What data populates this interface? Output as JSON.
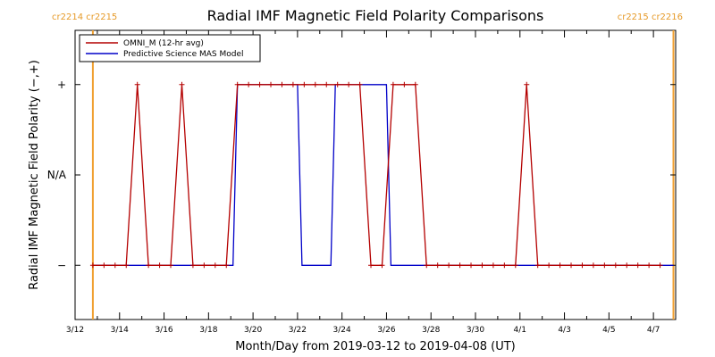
{
  "chart_data": {
    "type": "line",
    "title": "Radial IMF Magnetic Field Polarity Comparisons",
    "xlabel": "Month/Day from 2019-03-12 to 2019-04-08 (UT)",
    "ylabel": "Radial IMF Magnetic Field Polarity (−,+)",
    "x_unit": "days",
    "xlim": [
      0,
      27
    ],
    "ylim": [
      -1.6,
      1.6
    ],
    "x_ticks": [
      {
        "x": 0,
        "label": "3/12"
      },
      {
        "x": 2,
        "label": "3/14"
      },
      {
        "x": 4,
        "label": "3/16"
      },
      {
        "x": 6,
        "label": "3/18"
      },
      {
        "x": 8,
        "label": "3/20"
      },
      {
        "x": 10,
        "label": "3/22"
      },
      {
        "x": 12,
        "label": "3/24"
      },
      {
        "x": 14,
        "label": "3/26"
      },
      {
        "x": 16,
        "label": "3/28"
      },
      {
        "x": 18,
        "label": "3/30"
      },
      {
        "x": 20,
        "label": "4/1"
      },
      {
        "x": 22,
        "label": "4/3"
      },
      {
        "x": 24,
        "label": "4/5"
      },
      {
        "x": 26,
        "label": "4/7"
      }
    ],
    "y_ticks": [
      {
        "y": 1,
        "label": "+"
      },
      {
        "y": 0,
        "label": "N/A"
      },
      {
        "y": -1,
        "label": "−"
      }
    ],
    "rotation_markers": [
      {
        "x": 0.8,
        "label": "cr2214 cr2215",
        "side": "left"
      },
      {
        "x": 26.9,
        "label": "cr2215 cr2216",
        "side": "right"
      }
    ],
    "legend_position": "top-left",
    "series": [
      {
        "name": "OMNI_M (12-hr avg)",
        "color": "#b40000",
        "markers": true,
        "x": [
          0.8,
          1.3,
          1.8,
          2.3,
          2.8,
          3.3,
          3.8,
          4.3,
          4.8,
          5.3,
          5.8,
          6.3,
          6.8,
          7.3,
          7.8,
          8.3,
          8.8,
          9.3,
          9.8,
          10.3,
          10.8,
          11.3,
          11.8,
          12.3,
          12.8,
          13.3,
          13.8,
          14.3,
          14.8,
          15.3,
          15.8,
          16.3,
          16.8,
          17.3,
          17.8,
          18.3,
          18.8,
          19.3,
          19.8,
          20.3,
          20.8,
          21.3,
          21.8,
          22.3,
          22.8,
          23.3,
          23.8,
          24.3,
          24.8,
          25.3,
          25.8,
          26.3
        ],
        "y": [
          -1,
          -1,
          -1,
          -1,
          1,
          -1,
          -1,
          -1,
          1,
          -1,
          -1,
          -1,
          -1,
          1,
          1,
          1,
          1,
          1,
          1,
          1,
          1,
          1,
          1,
          1,
          1,
          -1,
          -1,
          1,
          1,
          1,
          -1,
          -1,
          -1,
          -1,
          -1,
          -1,
          -1,
          -1,
          -1,
          1,
          -1,
          -1,
          -1,
          -1,
          -1,
          -1,
          -1,
          -1,
          -1,
          -1,
          -1,
          -1
        ]
      },
      {
        "name": "Predictive Science MAS Model",
        "color": "#0000c8",
        "markers": false,
        "x": [
          0.8,
          7.1,
          7.3,
          10.0,
          10.2,
          11.5,
          11.7,
          14.0,
          14.2,
          26.9
        ],
        "y": [
          -1,
          -1,
          1,
          1,
          -1,
          -1,
          1,
          1,
          -1,
          -1
        ]
      }
    ]
  }
}
